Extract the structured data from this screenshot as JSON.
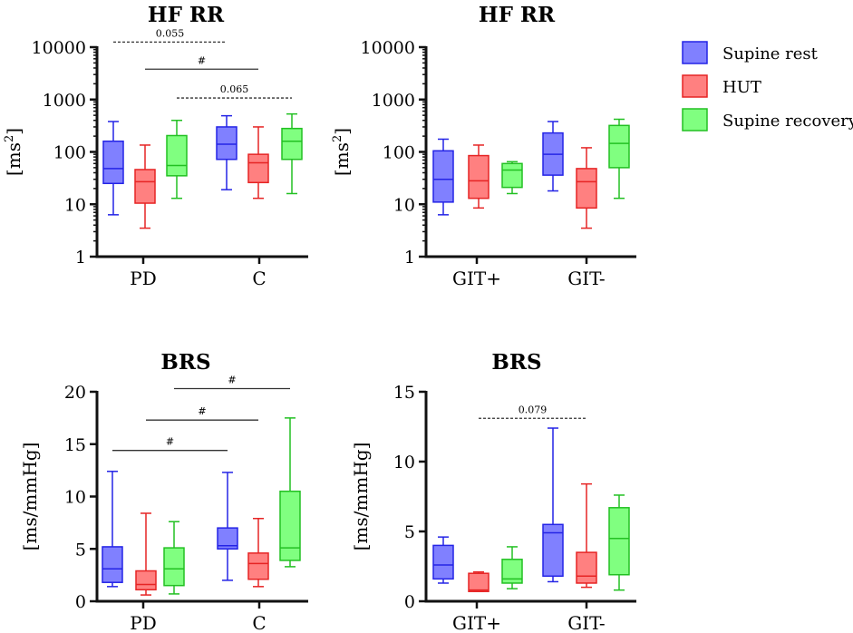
{
  "legend": [
    {
      "name": "Supine rest",
      "fill": "#8080ff",
      "stroke": "#2424e6"
    },
    {
      "name": "HUT",
      "fill": "#ff8080",
      "stroke": "#e62424"
    },
    {
      "name": "Supine recovery",
      "fill": "#80ff80",
      "stroke": "#22c022"
    }
  ],
  "chart_data": [
    {
      "type": "box",
      "title": "HF RR",
      "ylabel": "[ms",
      "ylabel_sup": "2",
      "ylabel_end": "]",
      "scale": "log",
      "ylim": [
        1,
        10000
      ],
      "yticks": [
        1,
        10,
        100,
        1000,
        10000
      ],
      "ytick_labels": [
        "1",
        "10",
        "100",
        "1000",
        "10000"
      ],
      "categories": [
        "PD",
        "C"
      ],
      "series": [
        {
          "name": "Supine rest",
          "stats": [
            {
              "min": 6.3,
              "q1": 25,
              "median": 48,
              "q3": 160,
              "max": 380
            },
            {
              "min": 19,
              "q1": 72,
              "median": 140,
              "q3": 300,
              "max": 490
            }
          ]
        },
        {
          "name": "HUT",
          "stats": [
            {
              "min": 3.5,
              "q1": 10.5,
              "median": 27,
              "q3": 46,
              "max": 135
            },
            {
              "min": 13,
              "q1": 26,
              "median": 62,
              "q3": 90,
              "max": 300
            }
          ]
        },
        {
          "name": "Supine recovery",
          "stats": [
            {
              "min": 13,
              "q1": 35,
              "median": 55,
              "q3": 205,
              "max": 400
            },
            {
              "min": 16,
              "q1": 72,
              "median": 160,
              "q3": 280,
              "max": 530
            }
          ]
        }
      ],
      "annotations": [
        {
          "label": "0.055",
          "from": [
            0,
            0
          ],
          "to": [
            1,
            0
          ],
          "y": 12500,
          "style": "dashed"
        },
        {
          "label": "#",
          "from": [
            0,
            1
          ],
          "to": [
            1,
            1
          ],
          "y": 3800,
          "style": "solid"
        },
        {
          "label": "0.065",
          "from": [
            0,
            2
          ],
          "to": [
            1,
            2
          ],
          "y": 1070,
          "style": "dashed"
        }
      ]
    },
    {
      "type": "box",
      "title": "HF RR",
      "ylabel": "[ms",
      "ylabel_sup": "2",
      "ylabel_end": "]",
      "scale": "log",
      "ylim": [
        1,
        10000
      ],
      "yticks": [
        1,
        10,
        100,
        1000,
        10000
      ],
      "ytick_labels": [
        "1",
        "10",
        "100",
        "1000",
        "10000"
      ],
      "categories": [
        "GIT+",
        "GIT-"
      ],
      "series": [
        {
          "name": "Supine rest",
          "stats": [
            {
              "min": 6.3,
              "q1": 11,
              "median": 30,
              "q3": 105,
              "max": 175
            },
            {
              "min": 18,
              "q1": 36,
              "median": 90,
              "q3": 230,
              "max": 380
            }
          ]
        },
        {
          "name": "HUT",
          "stats": [
            {
              "min": 8.5,
              "q1": 13,
              "median": 28,
              "q3": 85,
              "max": 135
            },
            {
              "min": 3.5,
              "q1": 8.5,
              "median": 27,
              "q3": 48,
              "max": 120
            }
          ]
        },
        {
          "name": "Supine recovery",
          "stats": [
            {
              "min": 16,
              "q1": 21,
              "median": 45,
              "q3": 60,
              "max": 65
            },
            {
              "min": 13,
              "q1": 50,
              "median": 145,
              "q3": 320,
              "max": 420
            }
          ]
        }
      ],
      "annotations": []
    },
    {
      "type": "box",
      "title": "BRS",
      "ylabel": "[ms/mmHg]",
      "ylabel_sup": "",
      "ylabel_end": "",
      "scale": "linear",
      "ylim": [
        0,
        20
      ],
      "yticks": [
        0,
        5,
        10,
        15,
        20
      ],
      "ytick_labels": [
        "0",
        "5",
        "10",
        "15",
        "20"
      ],
      "categories": [
        "PD",
        "C"
      ],
      "series": [
        {
          "name": "Supine rest",
          "stats": [
            {
              "min": 1.4,
              "q1": 1.8,
              "median": 3.1,
              "q3": 5.2,
              "max": 12.4
            },
            {
              "min": 2.0,
              "q1": 5.0,
              "median": 5.3,
              "q3": 7.0,
              "max": 12.3
            }
          ]
        },
        {
          "name": "HUT",
          "stats": [
            {
              "min": 0.6,
              "q1": 1.1,
              "median": 1.6,
              "q3": 2.9,
              "max": 8.4
            },
            {
              "min": 1.4,
              "q1": 2.1,
              "median": 3.6,
              "q3": 4.6,
              "max": 7.9
            }
          ]
        },
        {
          "name": "Supine recovery",
          "stats": [
            {
              "min": 0.7,
              "q1": 1.5,
              "median": 3.1,
              "q3": 5.1,
              "max": 7.6
            },
            {
              "min": 3.3,
              "q1": 3.9,
              "median": 5.1,
              "q3": 10.5,
              "max": 17.5
            }
          ]
        }
      ],
      "annotations": [
        {
          "label": "#",
          "from": [
            0,
            0
          ],
          "to": [
            1,
            0
          ],
          "y": 14.4,
          "style": "solid"
        },
        {
          "label": "#",
          "from": [
            0,
            1
          ],
          "to": [
            1,
            1
          ],
          "y": 17.3,
          "style": "solid"
        },
        {
          "label": "#",
          "from": [
            0,
            2
          ],
          "to": [
            1,
            2
          ],
          "y": 20.3,
          "style": "solid"
        }
      ]
    },
    {
      "type": "box",
      "title": "BRS",
      "ylabel": "[ms/mmHg]",
      "ylabel_sup": "",
      "ylabel_end": "",
      "scale": "linear",
      "ylim": [
        0,
        15
      ],
      "yticks": [
        0,
        5,
        10,
        15
      ],
      "ytick_labels": [
        "0",
        "5",
        "10",
        "15"
      ],
      "categories": [
        "GIT+",
        "GIT-"
      ],
      "series": [
        {
          "name": "Supine rest",
          "stats": [
            {
              "min": 1.3,
              "q1": 1.6,
              "median": 2.6,
              "q3": 4.0,
              "max": 4.6
            },
            {
              "min": 1.4,
              "q1": 1.8,
              "median": 4.9,
              "q3": 5.5,
              "max": 12.4
            }
          ]
        },
        {
          "name": "HUT",
          "stats": [
            {
              "min": 0.7,
              "q1": 0.7,
              "median": 0.8,
              "q3": 2.0,
              "max": 2.1
            },
            {
              "min": 1.0,
              "q1": 1.3,
              "median": 1.8,
              "q3": 3.5,
              "max": 8.4
            }
          ]
        },
        {
          "name": "Supine recovery",
          "stats": [
            {
              "min": 0.9,
              "q1": 1.3,
              "median": 1.6,
              "q3": 3.0,
              "max": 3.9
            },
            {
              "min": 0.8,
              "q1": 1.9,
              "median": 4.5,
              "q3": 6.7,
              "max": 7.6
            }
          ]
        }
      ],
      "annotations": [
        {
          "label": "0.079",
          "from": [
            0,
            1
          ],
          "to": [
            1,
            1
          ],
          "y": 13.1,
          "style": "dashed"
        }
      ]
    }
  ]
}
